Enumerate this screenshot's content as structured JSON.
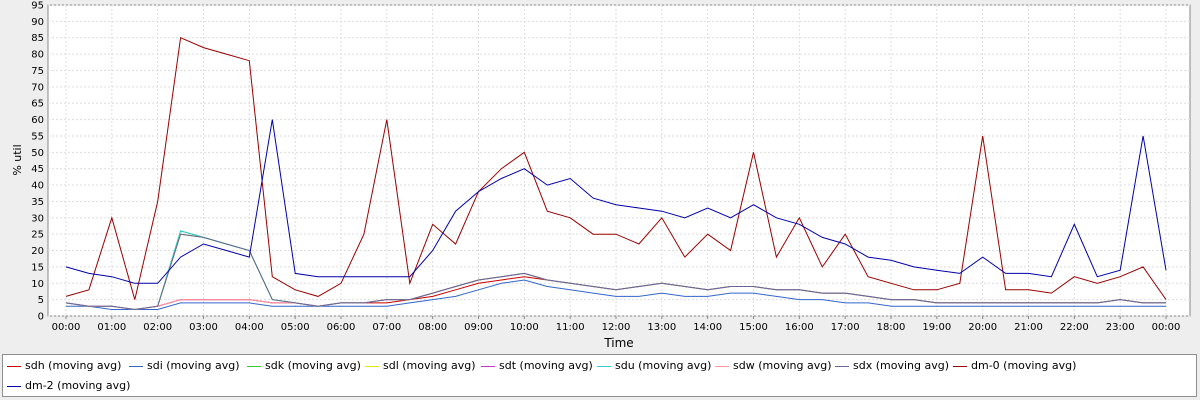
{
  "chart_data": {
    "type": "line",
    "title": "",
    "xlabel": "Time",
    "ylabel": "% util",
    "ylim": [
      0,
      95
    ],
    "yticks": [
      0,
      5,
      10,
      15,
      20,
      25,
      30,
      35,
      40,
      45,
      50,
      55,
      60,
      65,
      70,
      75,
      80,
      85,
      90,
      95
    ],
    "xticks": [
      "00:00",
      "01:00",
      "02:00",
      "03:00",
      "04:00",
      "05:00",
      "06:00",
      "07:00",
      "08:00",
      "09:00",
      "10:00",
      "11:00",
      "12:00",
      "13:00",
      "14:00",
      "15:00",
      "16:00",
      "17:00",
      "18:00",
      "19:00",
      "20:00",
      "21:00",
      "22:00",
      "23:00",
      "00:00"
    ],
    "grid": true,
    "legend_position": "bottom",
    "x_hours": [
      0,
      0.5,
      1,
      1.5,
      2,
      2.5,
      3,
      3.5,
      4,
      4.5,
      5,
      5.5,
      6,
      6.5,
      7,
      7.5,
      8,
      8.5,
      9,
      9.5,
      10,
      10.5,
      11,
      11.5,
      12,
      12.5,
      13,
      13.5,
      14,
      14.5,
      15,
      15.5,
      16,
      16.5,
      17,
      17.5,
      18,
      18.5,
      19,
      19.5,
      20,
      20.5,
      21,
      21.5,
      22,
      22.5,
      23,
      23.5,
      24
    ],
    "series": [
      {
        "name": "sdh (moving avg)",
        "color": "#cc0000",
        "values": [
          4,
          3,
          3,
          2,
          3,
          5,
          5,
          5,
          5,
          4,
          4,
          3,
          4,
          4,
          4,
          5,
          6,
          8,
          10,
          11,
          12,
          11,
          10,
          9,
          8,
          9,
          10,
          9,
          8,
          9,
          9,
          8,
          8,
          7,
          7,
          6,
          5,
          5,
          4,
          4,
          4,
          4,
          4,
          4,
          4,
          4,
          5,
          4,
          4
        ]
      },
      {
        "name": "sdi (moving avg)",
        "color": "#3366cc",
        "values": [
          3,
          3,
          2,
          2,
          2,
          4,
          4,
          4,
          4,
          3,
          3,
          3,
          3,
          3,
          3,
          4,
          5,
          6,
          8,
          10,
          11,
          9,
          8,
          7,
          6,
          6,
          7,
          6,
          6,
          7,
          7,
          6,
          5,
          5,
          4,
          4,
          3,
          3,
          3,
          3,
          3,
          3,
          3,
          3,
          3,
          3,
          3,
          3,
          3
        ]
      },
      {
        "name": "sdk (moving avg)",
        "color": "#33cc33",
        "values": [
          4,
          3,
          3,
          2,
          3,
          26,
          24,
          22,
          20,
          5,
          4,
          3,
          4,
          4,
          5,
          5,
          7,
          9,
          11,
          12,
          13,
          11,
          10,
          9,
          8,
          9,
          10,
          9,
          8,
          9,
          9,
          8,
          8,
          7,
          7,
          6,
          5,
          5,
          4,
          4,
          4,
          4,
          4,
          4,
          4,
          4,
          5,
          4,
          4
        ]
      },
      {
        "name": "sdl (moving avg)",
        "color": "#e6e600",
        "values": [
          4,
          3,
          3,
          2,
          3,
          25,
          24,
          22,
          20,
          5,
          4,
          3,
          4,
          4,
          5,
          5,
          7,
          9,
          11,
          12,
          13,
          11,
          10,
          9,
          8,
          9,
          10,
          9,
          8,
          9,
          9,
          8,
          8,
          7,
          7,
          6,
          5,
          5,
          4,
          4,
          4,
          4,
          4,
          4,
          4,
          4,
          5,
          4,
          4
        ]
      },
      {
        "name": "sdt (moving avg)",
        "color": "#cc33cc",
        "values": [
          4,
          3,
          3,
          2,
          3,
          5,
          5,
          5,
          5,
          4,
          4,
          3,
          4,
          4,
          5,
          5,
          7,
          9,
          11,
          12,
          13,
          11,
          10,
          9,
          8,
          9,
          10,
          9,
          8,
          9,
          9,
          8,
          8,
          7,
          7,
          6,
          5,
          5,
          4,
          4,
          4,
          4,
          4,
          4,
          4,
          4,
          5,
          4,
          4
        ]
      },
      {
        "name": "sdu (moving avg)",
        "color": "#33cccc",
        "values": [
          4,
          3,
          3,
          2,
          3,
          26,
          24,
          22,
          20,
          5,
          4,
          3,
          4,
          4,
          5,
          5,
          7,
          9,
          11,
          12,
          13,
          11,
          10,
          9,
          8,
          9,
          10,
          9,
          8,
          9,
          9,
          8,
          8,
          7,
          7,
          6,
          5,
          5,
          4,
          4,
          4,
          4,
          4,
          4,
          4,
          4,
          5,
          4,
          4
        ]
      },
      {
        "name": "sdw (moving avg)",
        "color": "#ff9999",
        "values": [
          4,
          3,
          3,
          2,
          3,
          5,
          5,
          5,
          5,
          4,
          4,
          3,
          4,
          4,
          5,
          5,
          7,
          9,
          11,
          12,
          13,
          11,
          10,
          9,
          8,
          9,
          10,
          9,
          8,
          9,
          9,
          8,
          8,
          7,
          7,
          6,
          5,
          5,
          4,
          4,
          4,
          4,
          4,
          4,
          4,
          4,
          5,
          4,
          4
        ]
      },
      {
        "name": "sdx (moving avg)",
        "color": "#666699",
        "values": [
          4,
          3,
          3,
          2,
          3,
          25,
          24,
          22,
          20,
          5,
          4,
          3,
          4,
          4,
          5,
          5,
          7,
          9,
          11,
          12,
          13,
          11,
          10,
          9,
          8,
          9,
          10,
          9,
          8,
          9,
          9,
          8,
          8,
          7,
          7,
          6,
          5,
          5,
          4,
          4,
          4,
          4,
          4,
          4,
          4,
          4,
          5,
          4,
          4
        ]
      },
      {
        "name": "dm-0 (moving avg)",
        "color": "#990000",
        "values": [
          6,
          8,
          30,
          5,
          35,
          85,
          82,
          80,
          78,
          12,
          8,
          6,
          10,
          25,
          60,
          10,
          28,
          22,
          38,
          45,
          50,
          32,
          30,
          25,
          25,
          22,
          30,
          18,
          25,
          20,
          50,
          18,
          30,
          15,
          25,
          12,
          10,
          8,
          8,
          10,
          55,
          8,
          8,
          7,
          12,
          10,
          12,
          15,
          5
        ]
      },
      {
        "name": "dm-2 (moving avg)",
        "color": "#0000aa",
        "values": [
          15,
          13,
          12,
          10,
          10,
          18,
          22,
          20,
          18,
          60,
          13,
          12,
          12,
          12,
          12,
          12,
          20,
          32,
          38,
          42,
          45,
          40,
          42,
          36,
          34,
          33,
          32,
          30,
          33,
          30,
          34,
          30,
          28,
          24,
          22,
          18,
          17,
          15,
          14,
          13,
          18,
          13,
          13,
          12,
          28,
          12,
          14,
          55,
          14
        ]
      }
    ]
  }
}
